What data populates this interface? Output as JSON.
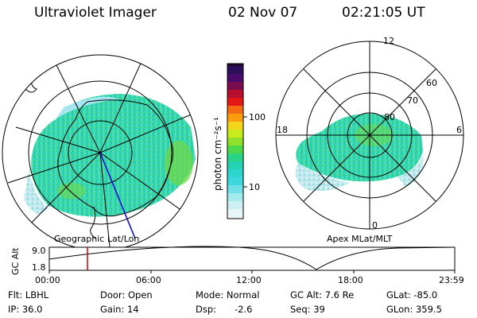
{
  "header": {
    "instrument": "Ultraviolet Imager",
    "date": "02 Nov 07",
    "time": "02:21:05 UT"
  },
  "left_panel": {
    "caption": "Geographic Lat/Lon"
  },
  "right_panel": {
    "caption": "Apex MLat/MLT",
    "mlt_labels": [
      "12",
      "18",
      "6",
      "0"
    ],
    "lat_labels": [
      "60",
      "70",
      "80"
    ]
  },
  "colorbar": {
    "unit_label": "photon cm⁻²s⁻¹",
    "tick_labels": [
      "100",
      "10"
    ],
    "scale": "log"
  },
  "altitude_plot": {
    "ylabel": "GC Alt",
    "y_ticks": [
      "9.0",
      "1.8"
    ],
    "x_ticks": [
      "00:00",
      "06:00",
      "12:00",
      "18:00",
      "23:59"
    ],
    "marker_time": "02:21",
    "marker_color": "#cc0000"
  },
  "info": {
    "flt": "Flt: LBHL",
    "door": "Door: Open",
    "mode": "Mode: Normal",
    "gc_alt": "GC Alt: 7.6 Re",
    "glat": "GLat: -85.0",
    "ip": "IP: 36.0",
    "gain": "Gain: 14",
    "dsp_label": "Dsp:",
    "dsp_value": "-2.6",
    "seq": "Seq: 39",
    "glon": "GLon: 359.5"
  }
}
